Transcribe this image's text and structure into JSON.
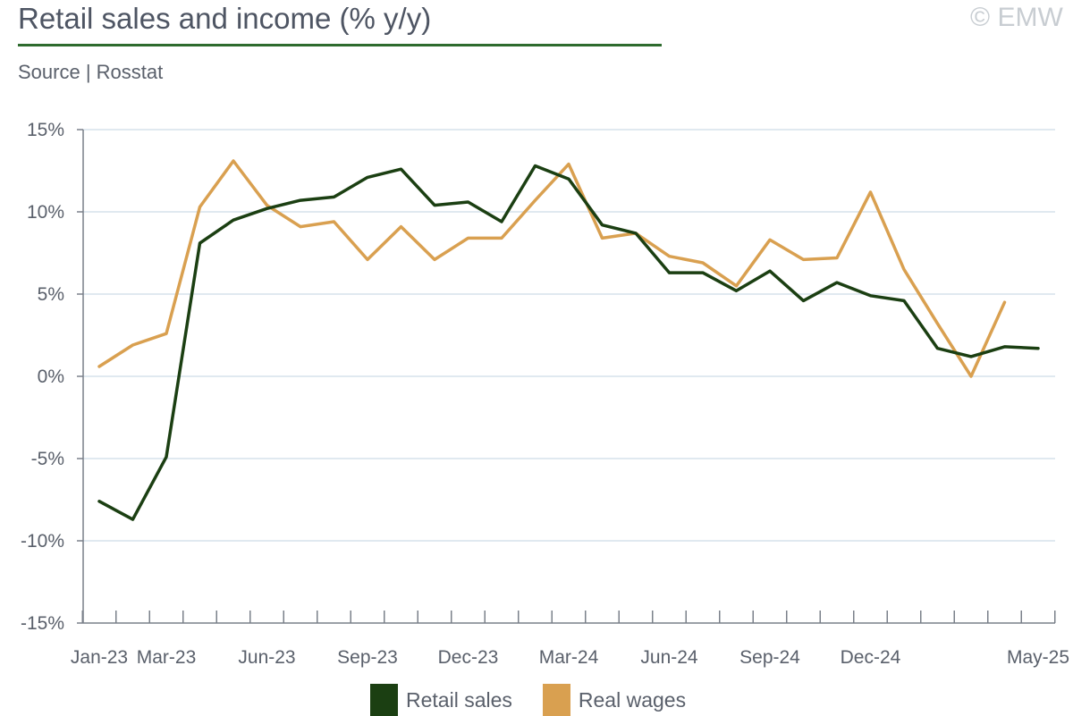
{
  "header": {
    "title": "Retail sales and income (% y/y)",
    "source": "Source | Rosstat",
    "copyright": "© EMW"
  },
  "colors": {
    "retail": "#1b3f12",
    "wages": "#d9a050",
    "title_rule": "#2e6b2e",
    "grid": "#d6e2ec",
    "axis": "#7a808a"
  },
  "chart_data": {
    "type": "line",
    "title": "Retail sales and income (% y/y)",
    "xlabel": "",
    "ylabel": "",
    "ylim": [
      -15,
      15
    ],
    "yticks": [
      15,
      10,
      5,
      0,
      -5,
      -10,
      -15
    ],
    "ytick_labels": [
      "15%",
      "10%",
      "5%",
      "0%",
      "-5%",
      "-10%",
      "-15%"
    ],
    "grid": true,
    "legend": "bottom-center",
    "categories": [
      "Jan-23",
      "Feb-23",
      "Mar-23",
      "Apr-23",
      "May-23",
      "Jun-23",
      "Jul-23",
      "Aug-23",
      "Sep-23",
      "Oct-23",
      "Nov-23",
      "Dec-23",
      "Jan-24",
      "Feb-24",
      "Mar-24",
      "Apr-24",
      "May-24",
      "Jun-24",
      "Jul-24",
      "Aug-24",
      "Sep-24",
      "Oct-24",
      "Nov-24",
      "Dec-24",
      "Jan-25",
      "Feb-25",
      "Mar-25",
      "Apr-25",
      "May-25"
    ],
    "xtick_labels": [
      {
        "index": 0,
        "label": "Jan-23"
      },
      {
        "index": 2,
        "label": "Mar-23"
      },
      {
        "index": 5,
        "label": "Jun-23"
      },
      {
        "index": 8,
        "label": "Sep-23"
      },
      {
        "index": 11,
        "label": "Dec-23"
      },
      {
        "index": 14,
        "label": "Mar-24"
      },
      {
        "index": 17,
        "label": "Jun-24"
      },
      {
        "index": 20,
        "label": "Sep-24"
      },
      {
        "index": 23,
        "label": "Dec-24"
      },
      {
        "index": 28,
        "label": "May-25"
      }
    ],
    "series": [
      {
        "name": "Retail sales",
        "color": "#1b3f12",
        "values": [
          -7.6,
          -8.7,
          -4.9,
          8.1,
          9.5,
          10.2,
          10.7,
          10.9,
          12.1,
          12.6,
          10.4,
          10.6,
          9.4,
          12.8,
          12.0,
          9.2,
          8.7,
          6.3,
          6.3,
          5.2,
          6.4,
          4.6,
          5.7,
          4.9,
          4.6,
          1.7,
          1.2,
          1.8,
          1.7
        ]
      },
      {
        "name": "Real wages",
        "color": "#d9a050",
        "values": [
          0.6,
          1.9,
          2.6,
          10.3,
          13.1,
          10.4,
          9.1,
          9.4,
          7.1,
          9.1,
          7.1,
          8.4,
          8.4,
          10.7,
          12.9,
          8.4,
          8.7,
          7.3,
          6.9,
          5.5,
          8.3,
          7.1,
          7.2,
          11.2,
          6.5,
          3.2,
          0.0,
          4.5,
          null
        ]
      }
    ]
  }
}
